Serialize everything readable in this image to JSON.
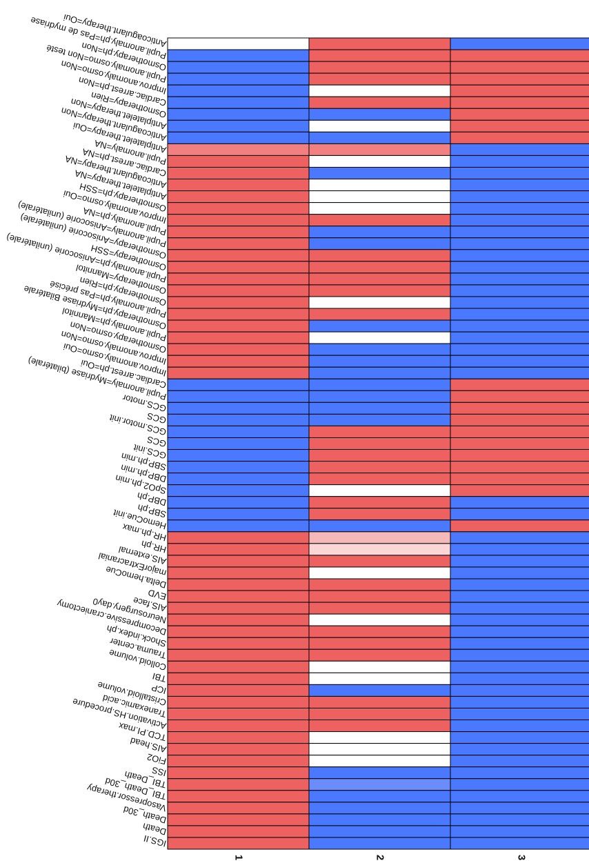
{
  "colors": {
    "red": "#ed6161",
    "blue": "#4a78ff",
    "white": "#ffffff",
    "light_red": "#f28080",
    "pale_red": "#f6b9b9",
    "very_pale_red": "#fbd6d6",
    "light_blue": "#6a8dfb",
    "border": "#000000"
  },
  "chart_data": {
    "type": "heatmap",
    "title": "",
    "xlabel": "",
    "ylabel": "",
    "columns": [
      "1",
      "2",
      "3"
    ],
    "rows": [
      {
        "label": "Anticoagulant.therapy=Oui",
        "values": [
          "white",
          "red",
          "blue"
        ]
      },
      {
        "label": "Pupil.anomaly.ph=Pas de mydriase",
        "values": [
          "blue",
          "red",
          "red"
        ]
      },
      {
        "label": "Osmotherapy.ph=Non",
        "values": [
          "blue",
          "red",
          "red"
        ]
      },
      {
        "label": "Pupil.anomaly.osmo=Non testé",
        "values": [
          "blue",
          "red",
          "red"
        ]
      },
      {
        "label": "Improv.anomaly.osmo=Non",
        "values": [
          "blue",
          "white",
          "red"
        ]
      },
      {
        "label": "Cardiac.arrest.ph=Non",
        "values": [
          "blue",
          "red",
          "red"
        ]
      },
      {
        "label": "Osmotherapy=Rien",
        "values": [
          "blue",
          "blue",
          "red"
        ]
      },
      {
        "label": "Antiplatelet.therapy=Non",
        "values": [
          "blue",
          "white",
          "red"
        ]
      },
      {
        "label": "Anticoagulant.therapy=Non",
        "values": [
          "blue",
          "blue",
          "red"
        ]
      },
      {
        "label": "Antiplatelet.therapy=Oui",
        "values": [
          "light_red",
          "light_red",
          "blue"
        ]
      },
      {
        "label": "Pupil.anomaly=NA",
        "values": [
          "red",
          "white",
          "blue"
        ]
      },
      {
        "label": "Cardiac.arrest.ph=NA",
        "values": [
          "red",
          "blue",
          "blue"
        ]
      },
      {
        "label": "Anticoagulant.therapy=NA",
        "values": [
          "red",
          "white",
          "blue"
        ]
      },
      {
        "label": "Antiplatelet.therapy=NA",
        "values": [
          "red",
          "white",
          "blue"
        ]
      },
      {
        "label": "Osmotherapy.ph=SSH",
        "values": [
          "red",
          "white",
          "blue"
        ]
      },
      {
        "label": "Improv.anomaly.osmo=Oui",
        "values": [
          "red",
          "red",
          "blue"
        ]
      },
      {
        "label": "Pupil.anomaly.ph=NA",
        "values": [
          "red",
          "blue",
          "blue"
        ]
      },
      {
        "label": "Pupil.anomaly=Anisocorie (unilatérale)",
        "values": [
          "red",
          "blue",
          "blue"
        ]
      },
      {
        "label": "Osmotherapy=Anisocorie (unilatérale)",
        "values": [
          "red",
          "red",
          "blue"
        ]
      },
      {
        "label": "Osmotherapy=SSH",
        "values": [
          "red",
          "red",
          "blue"
        ]
      },
      {
        "label": "Pupil.anomaly.ph=Anisocorie (unilatérale)",
        "values": [
          "red",
          "red",
          "blue"
        ]
      },
      {
        "label": "Osmotherapy=Mannitol",
        "values": [
          "red",
          "red",
          "blue"
        ]
      },
      {
        "label": "Osmotherapy.ph=Rien",
        "values": [
          "red",
          "white",
          "blue"
        ]
      },
      {
        "label": "Pupil.anomaly.ph=Pas précisé",
        "values": [
          "red",
          "red",
          "blue"
        ]
      },
      {
        "label": "Osmotherapy.ph=Mydriase Bilatérale",
        "values": [
          "red",
          "blue",
          "blue"
        ]
      },
      {
        "label": "Pupil.anomaly.ph=Mannitol",
        "values": [
          "red",
          "white",
          "blue"
        ]
      },
      {
        "label": "Osmotherapy.osmo=Non",
        "values": [
          "red",
          "blue",
          "blue"
        ]
      },
      {
        "label": "Improv.anomaly.osmo=Non",
        "values": [
          "red",
          "blue",
          "blue"
        ]
      },
      {
        "label": "Improv.anomaly.osmo=Oui",
        "values": [
          "red",
          "blue",
          "blue"
        ]
      },
      {
        "label": "Cardiac.arrest.ph=Oui",
        "values": [
          "blue",
          "blue",
          "red"
        ]
      },
      {
        "label": "Pupil.anomaly=Mydriase (bilatérale)",
        "values": [
          "blue",
          "blue",
          "red"
        ]
      },
      {
        "label": "GCS.motor",
        "values": [
          "blue",
          "blue",
          "red"
        ]
      },
      {
        "label": "GCS",
        "values": [
          "blue",
          "blue",
          "red"
        ]
      },
      {
        "label": "GCS.motor.init",
        "values": [
          "blue",
          "red",
          "red"
        ]
      },
      {
        "label": "GCS",
        "values": [
          "blue",
          "red",
          "red"
        ]
      },
      {
        "label": "GCS.init",
        "values": [
          "blue",
          "red",
          "red"
        ]
      },
      {
        "label": "SBP.ph.min",
        "values": [
          "blue",
          "red",
          "red"
        ]
      },
      {
        "label": "DBP.ph.min",
        "values": [
          "blue",
          "red",
          "red"
        ]
      },
      {
        "label": "SpO2.ph.min",
        "values": [
          "blue",
          "white",
          "red"
        ]
      },
      {
        "label": "DBP.ph",
        "values": [
          "blue",
          "red",
          "blue"
        ]
      },
      {
        "label": "SBP.ph",
        "values": [
          "blue",
          "red",
          "blue"
        ]
      },
      {
        "label": "HemoCue.init",
        "values": [
          "blue",
          "blue",
          "red"
        ]
      },
      {
        "label": "HR.ph.max",
        "values": [
          "red",
          "pale_red",
          "blue"
        ]
      },
      {
        "label": "HR.ph",
        "values": [
          "red",
          "very_pale_red",
          "blue"
        ]
      },
      {
        "label": "AIS.external",
        "values": [
          "red",
          "red",
          "blue"
        ]
      },
      {
        "label": "majorExtracranial",
        "values": [
          "red",
          "white",
          "blue"
        ]
      },
      {
        "label": "Delta.hemoCue",
        "values": [
          "red",
          "red",
          "blue"
        ]
      },
      {
        "label": "EVD",
        "values": [
          "red",
          "red",
          "blue"
        ]
      },
      {
        "label": "AIS.face",
        "values": [
          "red",
          "red",
          "blue"
        ]
      },
      {
        "label": "Neurosurgery.day0",
        "values": [
          "red",
          "white",
          "blue"
        ]
      },
      {
        "label": "Decompressive.craniectomy",
        "values": [
          "red",
          "red",
          "blue"
        ]
      },
      {
        "label": "Shock.index.ph",
        "values": [
          "red",
          "red",
          "blue"
        ]
      },
      {
        "label": "Trauma.center",
        "values": [
          "red",
          "red",
          "blue"
        ]
      },
      {
        "label": "Colloid.volume",
        "values": [
          "red",
          "white",
          "blue"
        ]
      },
      {
        "label": "TBI",
        "values": [
          "red",
          "white",
          "blue"
        ]
      },
      {
        "label": "ICP",
        "values": [
          "red",
          "blue",
          "blue"
        ]
      },
      {
        "label": "Cristalloid.volume",
        "values": [
          "red",
          "red",
          "blue"
        ]
      },
      {
        "label": "Tranexamic.acid",
        "values": [
          "red",
          "red",
          "blue"
        ]
      },
      {
        "label": "Activation.HS.procedure",
        "values": [
          "red",
          "red",
          "blue"
        ]
      },
      {
        "label": "TCD.PI.max",
        "values": [
          "red",
          "white",
          "blue"
        ]
      },
      {
        "label": "AIS.head",
        "values": [
          "red",
          "white",
          "blue"
        ]
      },
      {
        "label": "FiO2",
        "values": [
          "red",
          "white",
          "blue"
        ]
      },
      {
        "label": "ISS",
        "values": [
          "red",
          "blue",
          "blue"
        ]
      },
      {
        "label": "TBI_Death",
        "values": [
          "red",
          "light_blue",
          "blue"
        ]
      },
      {
        "label": "TBI_Death_30d",
        "values": [
          "red",
          "blue",
          "blue"
        ]
      },
      {
        "label": "Vasopressor.therapy",
        "values": [
          "red",
          "blue",
          "blue"
        ]
      },
      {
        "label": "Death_30d",
        "values": [
          "red",
          "blue",
          "blue"
        ]
      },
      {
        "label": "Death",
        "values": [
          "red",
          "blue",
          "blue"
        ]
      },
      {
        "label": "IGS.II",
        "values": [
          "red",
          "blue",
          "blue"
        ]
      }
    ]
  }
}
